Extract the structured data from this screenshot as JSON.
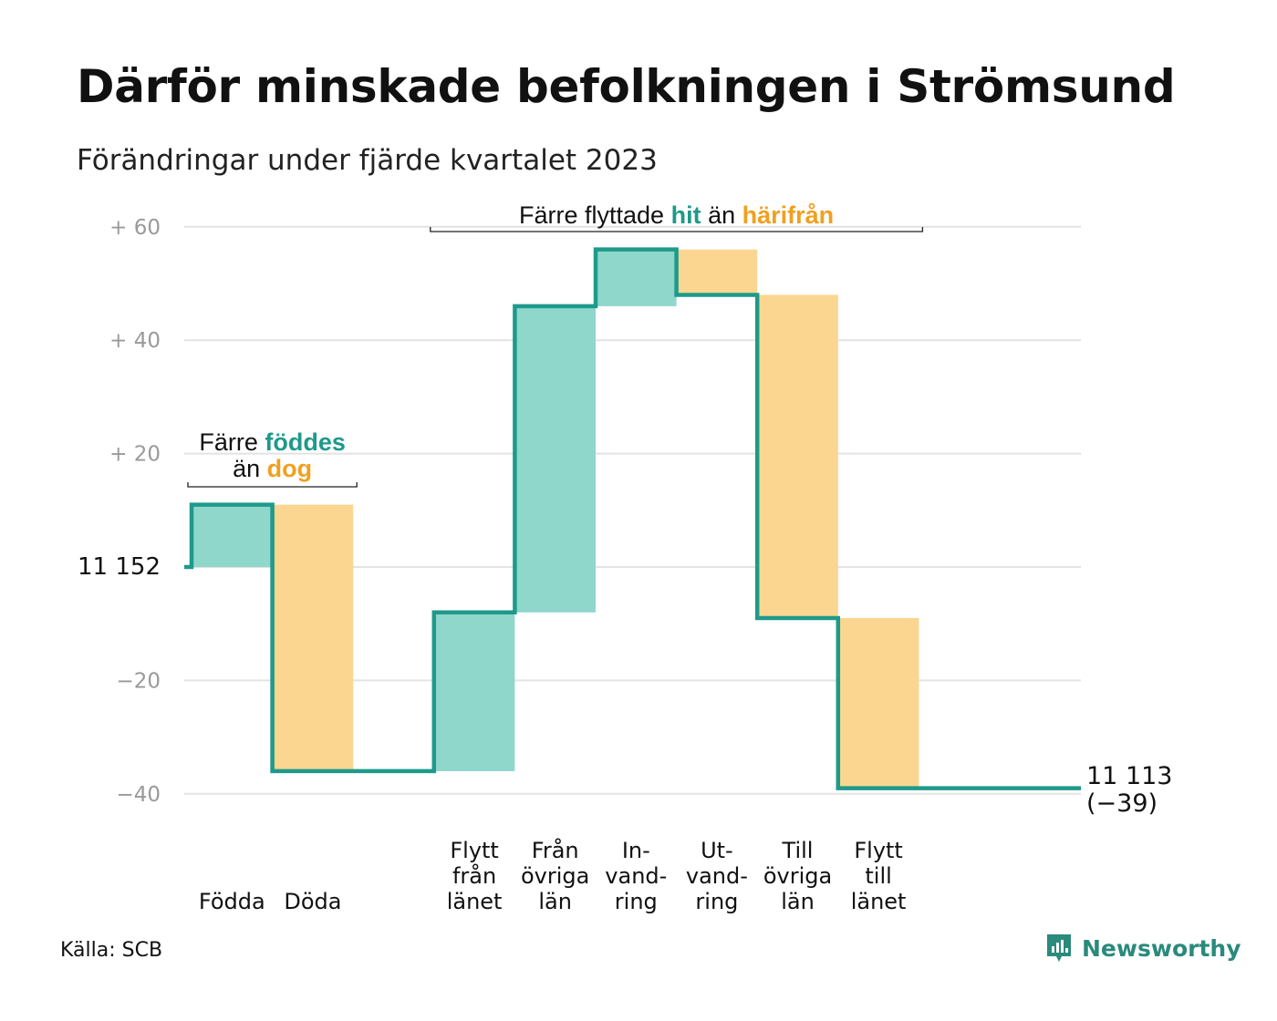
{
  "title": "Därför minskade befolkningen i Strömsund",
  "subtitle": "Förändringar under fjärde kvartalet 2023",
  "source": "Källa: SCB",
  "brand": {
    "name": "Newsworthy",
    "icon": "newsworthy-logo-icon",
    "color": "#2a8a7c"
  },
  "colors": {
    "inflow": "#8fd6cb",
    "outflow": "#fbd691",
    "line": "#1e9a8a",
    "grid": "#e3e3e3",
    "ticks": "#9a9a9a"
  },
  "chart_data": {
    "type": "waterfall",
    "title": "Därför minskade befolkningen i Strömsund",
    "subtitle": "Förändringar under fjärde kvartalet 2023",
    "baseline": 11152,
    "end_value": 11113,
    "ylim": [
      -43,
      60
    ],
    "grid": true,
    "y_ticks": [
      {
        "value": 60,
        "label": "+ 60"
      },
      {
        "value": 40,
        "label": "+ 40"
      },
      {
        "value": 20,
        "label": "+ 20"
      },
      {
        "value": 0,
        "label": "11 152"
      },
      {
        "value": -20,
        "label": "−20"
      },
      {
        "value": -40,
        "label": "−40"
      }
    ],
    "steps": [
      {
        "label": [
          "Födda"
        ],
        "change": 11,
        "kind": "inflow"
      },
      {
        "label": [
          "Döda"
        ],
        "change": -47,
        "kind": "outflow"
      },
      {
        "label": [],
        "change": 0,
        "kind": "gap"
      },
      {
        "label": [
          "Flytt",
          "från",
          "länet"
        ],
        "change": 28,
        "kind": "inflow"
      },
      {
        "label": [
          "Från",
          "övriga",
          "län"
        ],
        "change": 54,
        "kind": "inflow"
      },
      {
        "label": [
          "In-",
          "vand-",
          "ring"
        ],
        "change": 10,
        "kind": "inflow"
      },
      {
        "label": [
          "Ut-",
          "vand-",
          "ring"
        ],
        "change": -8,
        "kind": "outflow"
      },
      {
        "label": [
          "Till",
          "övriga",
          "län"
        ],
        "change": -57,
        "kind": "outflow"
      },
      {
        "label": [
          "Flytt",
          "till",
          "länet"
        ],
        "change": -30,
        "kind": "outflow"
      }
    ],
    "end_label": [
      "11 113",
      "(−39)"
    ],
    "annotations": [
      {
        "name": "births-deaths",
        "first_step": 0,
        "last_step": 1,
        "lines": [
          [
            {
              "text": "Färre ",
              "kind": "plain"
            },
            {
              "text": "föddes",
              "kind": "inflow"
            }
          ],
          [
            {
              "text": "än ",
              "kind": "plain"
            },
            {
              "text": "dog",
              "kind": "outflow"
            }
          ]
        ]
      },
      {
        "name": "migration",
        "first_step": 3,
        "last_step": 8,
        "lines": [
          [
            {
              "text": "Färre flyttade ",
              "kind": "plain"
            },
            {
              "text": "hit",
              "kind": "inflow"
            },
            {
              "text": " än ",
              "kind": "plain"
            },
            {
              "text": "härifrån",
              "kind": "outflow"
            }
          ]
        ]
      }
    ]
  }
}
